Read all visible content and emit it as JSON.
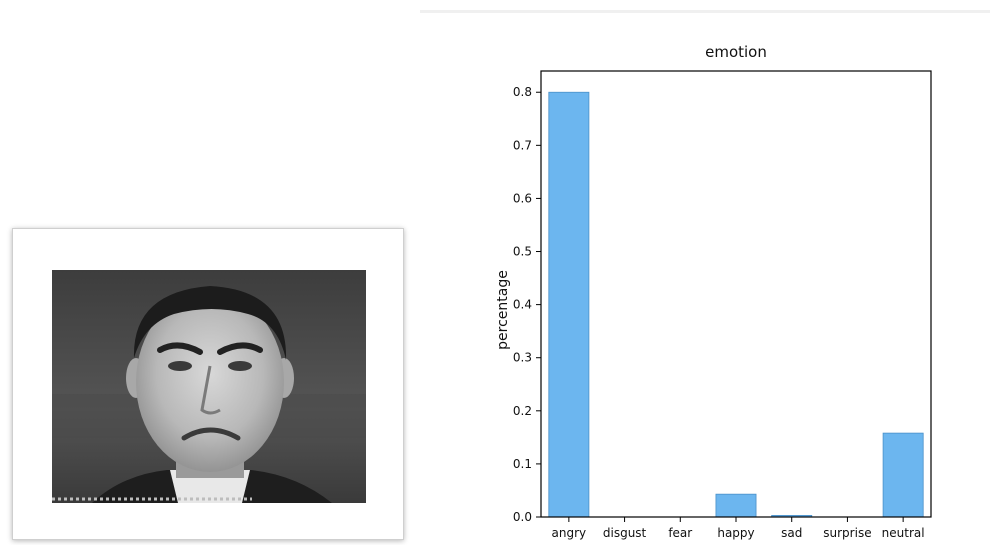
{
  "photo": {
    "subject": "face-photo"
  },
  "chart_data": {
    "type": "bar",
    "title": "emotion",
    "xlabel": "",
    "ylabel": "percentage",
    "categories": [
      "angry",
      "disgust",
      "fear",
      "happy",
      "sad",
      "surprise",
      "neutral"
    ],
    "values": [
      0.8,
      0.0,
      0.0,
      0.043,
      0.003,
      0.0,
      0.158
    ],
    "ylim": [
      0,
      0.84
    ],
    "yticks": [
      0.0,
      0.1,
      0.2,
      0.3,
      0.4,
      0.5,
      0.6,
      0.7,
      0.8
    ],
    "ytick_labels": [
      "0.0",
      "0.1",
      "0.2",
      "0.3",
      "0.4",
      "0.5",
      "0.6",
      "0.7",
      "0.8"
    ],
    "bar_color": "#6cb6ef",
    "bar_edge_color": "#4a90c8",
    "grid": false,
    "legend": "none"
  }
}
